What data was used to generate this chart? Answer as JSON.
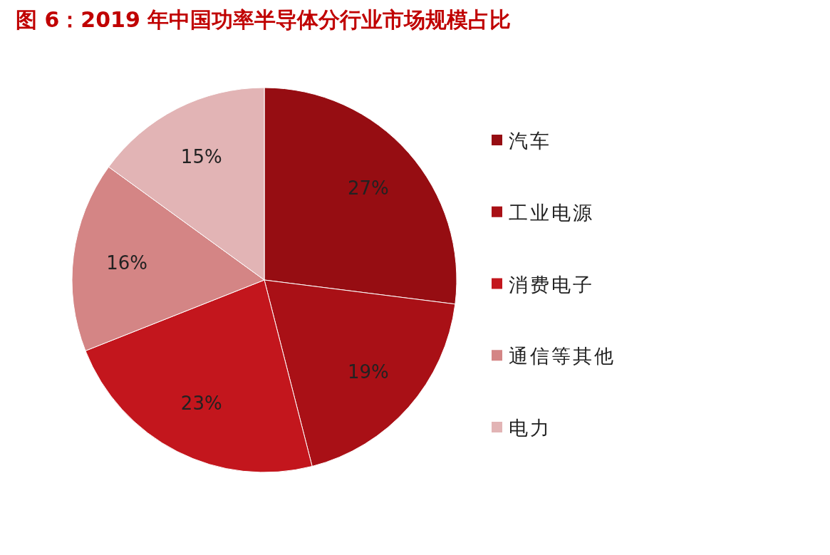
{
  "chart_data": {
    "type": "pie",
    "title": "图 6：2019 年中国功率半导体分行业市场规模占比",
    "categories": [
      "汽车",
      "工业电源",
      "消费电子",
      "通信等其他",
      "电力"
    ],
    "values": [
      27,
      19,
      23,
      16,
      15
    ],
    "colors": [
      "#960d12",
      "#a91016",
      "#c3161d",
      "#d48585",
      "#e2b4b5"
    ],
    "value_labels": [
      "27%",
      "19%",
      "23%",
      "16%",
      "15%"
    ],
    "legend": "right"
  }
}
